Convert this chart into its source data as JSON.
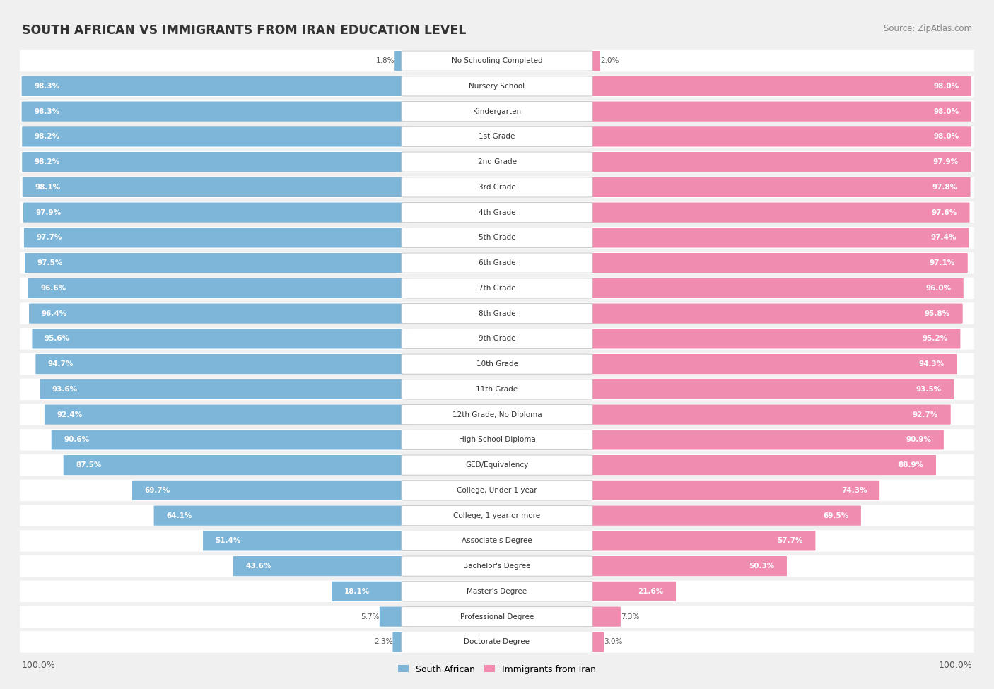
{
  "title": "SOUTH AFRICAN VS IMMIGRANTS FROM IRAN EDUCATION LEVEL",
  "source": "Source: ZipAtlas.com",
  "categories": [
    "No Schooling Completed",
    "Nursery School",
    "Kindergarten",
    "1st Grade",
    "2nd Grade",
    "3rd Grade",
    "4th Grade",
    "5th Grade",
    "6th Grade",
    "7th Grade",
    "8th Grade",
    "9th Grade",
    "10th Grade",
    "11th Grade",
    "12th Grade, No Diploma",
    "High School Diploma",
    "GED/Equivalency",
    "College, Under 1 year",
    "College, 1 year or more",
    "Associate's Degree",
    "Bachelor's Degree",
    "Master's Degree",
    "Professional Degree",
    "Doctorate Degree"
  ],
  "south_african": [
    1.8,
    98.3,
    98.3,
    98.2,
    98.2,
    98.1,
    97.9,
    97.7,
    97.5,
    96.6,
    96.4,
    95.6,
    94.7,
    93.6,
    92.4,
    90.6,
    87.5,
    69.7,
    64.1,
    51.4,
    43.6,
    18.1,
    5.7,
    2.3
  ],
  "immigrants_iran": [
    2.0,
    98.0,
    98.0,
    98.0,
    97.9,
    97.8,
    97.6,
    97.4,
    97.1,
    96.0,
    95.8,
    95.2,
    94.3,
    93.5,
    92.7,
    90.9,
    88.9,
    74.3,
    69.5,
    57.7,
    50.3,
    21.6,
    7.3,
    3.0
  ],
  "color_sa": "#7EB6D9",
  "color_iran": "#F08CB0",
  "bg_color": "#F0F0F0",
  "row_bg_color": "#FFFFFF",
  "legend_sa": "South African",
  "legend_iran": "Immigrants from Iran",
  "axis_label_left": "100.0%",
  "axis_label_right": "100.0%"
}
